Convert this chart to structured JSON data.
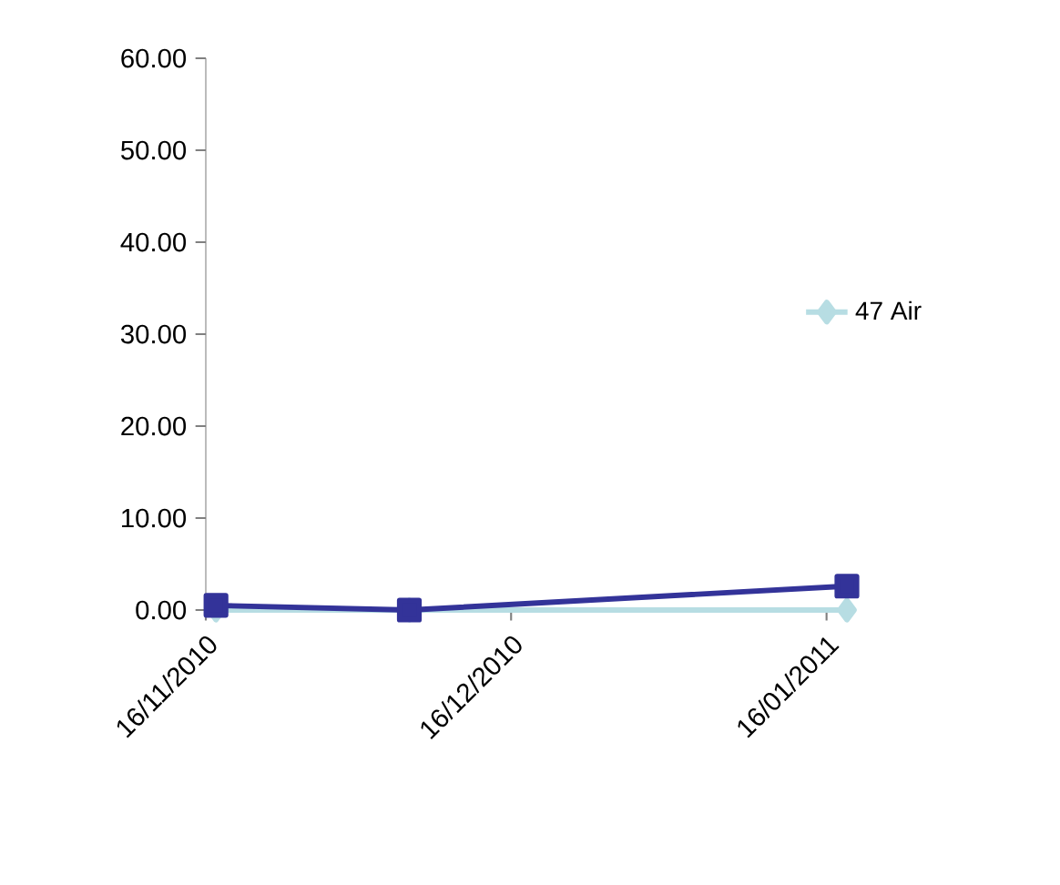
{
  "chart_data": {
    "type": "line",
    "x": [
      "2010-11-17",
      "2010-12-06",
      "2011-01-18"
    ],
    "series": [
      {
        "color": "#b7dde3",
        "marker": "diamond",
        "x": [
          "2010-11-17",
          "2010-12-06",
          "2011-01-18"
        ],
        "values": [
          0,
          0,
          0
        ],
        "name": "47 Air"
      },
      {
        "color": "#333399",
        "marker": "square",
        "values": [
          0.5,
          0,
          2.6
        ]
      }
    ],
    "xlim": [
      "2010-11-16",
      "2011-01-18"
    ],
    "xticks": [
      {
        "value": "2010-11-16",
        "label": "16/11/2010"
      },
      {
        "value": "2010-12-16",
        "label": "16/12/2010"
      },
      {
        "value": "2011-01-16",
        "label": "16/01/2011"
      }
    ],
    "ylim": [
      0,
      60
    ],
    "yticks": [
      {
        "value": 0,
        "label": "0.00"
      },
      {
        "value": 10,
        "label": "10.00"
      },
      {
        "value": 20,
        "label": "20.00"
      },
      {
        "value": 30,
        "label": "30.00"
      },
      {
        "value": 40,
        "label": "40.00"
      },
      {
        "value": 50,
        "label": "50.00"
      },
      {
        "value": 60,
        "label": "60.00"
      }
    ],
    "legend": "right",
    "grid": false
  }
}
